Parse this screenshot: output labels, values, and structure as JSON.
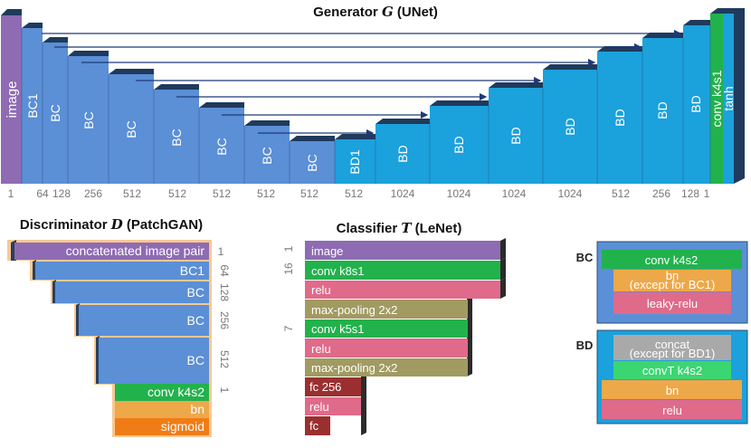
{
  "generator": {
    "title": "Generator G (UNet)",
    "title_prefix": "Generator ",
    "title_var": "G",
    "title_suffix": " (UNet)",
    "encoder_labels": [
      "image",
      "BC1",
      "BC",
      "BC",
      "BC",
      "BC",
      "BC",
      "BC",
      "BC"
    ],
    "decoder_labels": [
      "BD1",
      "BD",
      "BD",
      "BD",
      "BD",
      "BD",
      "BD",
      "BD"
    ],
    "output_labels": [
      "conv k4s1",
      "tanh"
    ],
    "channels": [
      "1",
      "64",
      "128",
      "256",
      "512",
      "512",
      "512",
      "512",
      "512",
      "512",
      "1024",
      "1024",
      "1024",
      "1024",
      "512",
      "256",
      "128",
      "1"
    ]
  },
  "discriminator": {
    "title_prefix": "Discriminator ",
    "title_var": "D",
    "title_suffix": " (PatchGAN)",
    "layers": [
      "concatenated image pair",
      "BC1",
      "BC",
      "BC",
      "BC",
      "conv k4s2",
      "bn",
      "sigmoid"
    ],
    "channels": [
      "1",
      "64",
      "128",
      "256",
      "512",
      "1"
    ]
  },
  "classifier": {
    "title_prefix": "Classifier ",
    "title_var": "T",
    "title_suffix": " (LeNet)",
    "layers": [
      "image",
      "conv k8s1",
      "relu",
      "max-pooling 2x2",
      "conv k5s1",
      "relu",
      "max-pooling 2x2",
      "fc 256",
      "relu",
      "fc"
    ],
    "channels": [
      "1",
      "16",
      "7"
    ]
  },
  "legend_bc": {
    "title": "BC",
    "layers": [
      "conv k4s2",
      "bn",
      "leaky-relu"
    ],
    "bn_note": "(except for BC1)"
  },
  "legend_bd": {
    "title": "BD",
    "layers": [
      "concat",
      "convT k4s2",
      "bn",
      "relu"
    ],
    "concat_note": "(except for BD1)"
  },
  "colors": {
    "encoder": "#5b8fd6",
    "decoder": "#1ba1dc",
    "image": "#8e6bb3",
    "conv": "#22b24c",
    "relu": "#e06a8a",
    "pool": "#a19a61",
    "fc": "#9b2f2f",
    "bn": "#eda84a",
    "sigmoid": "#f07c16",
    "concat": "#a9a9a9",
    "dark_top": "#1e3550"
  }
}
